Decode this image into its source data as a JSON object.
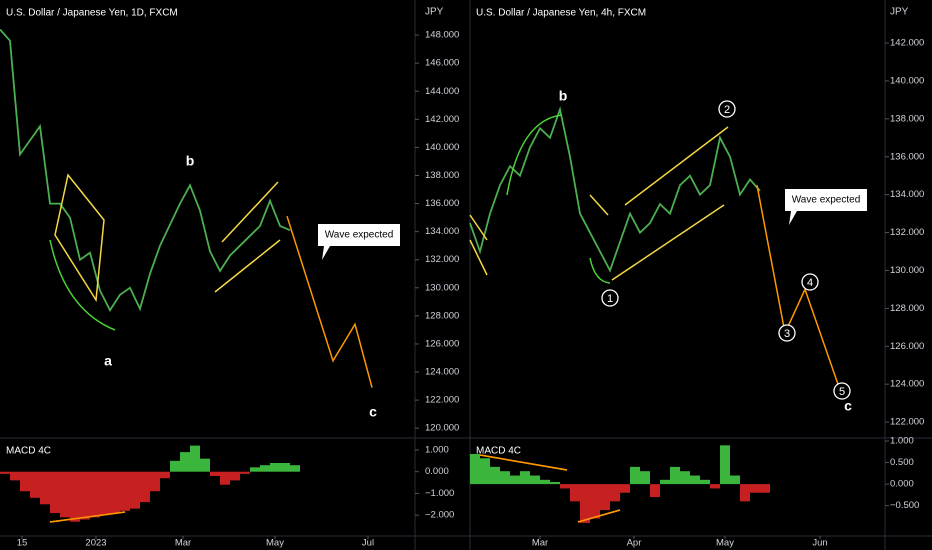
{
  "chart_data": [
    {
      "type": "line",
      "title": "U.S. Dollar / Japanese Yen, 1D, FXCM",
      "y_label": "JPY",
      "xlim": [
        0,
        41.5
      ],
      "ylim": [
        119.3,
        150.5
      ],
      "xticks": [
        {
          "value": 2.2,
          "label": "15"
        },
        {
          "value": 9.6,
          "label": "2023"
        },
        {
          "value": 18.3,
          "label": "Mar"
        },
        {
          "value": 27.5,
          "label": "May"
        },
        {
          "value": 36.8,
          "label": "Jul"
        }
      ],
      "yticks": [
        {
          "value": 120,
          "label": "120.000"
        },
        {
          "value": 122,
          "label": "122.000"
        },
        {
          "value": 124,
          "label": "124.000"
        },
        {
          "value": 126,
          "label": "126.000"
        },
        {
          "value": 128,
          "label": "128.000"
        },
        {
          "value": 130,
          "label": "130.000"
        },
        {
          "value": 132,
          "label": "132.000"
        },
        {
          "value": 134,
          "label": "134.000"
        },
        {
          "value": 136,
          "label": "136.000"
        },
        {
          "value": 138,
          "label": "138.000"
        },
        {
          "value": 140,
          "label": "140.000"
        },
        {
          "value": 142,
          "label": "142.000"
        },
        {
          "value": 144,
          "label": "144.000"
        },
        {
          "value": 146,
          "label": "146.000"
        },
        {
          "value": 148,
          "label": "148.000"
        }
      ],
      "series": [
        {
          "color": "#4caf50",
          "x": [
            0,
            1,
            2,
            3,
            4,
            5,
            6,
            7,
            8,
            9,
            10,
            11,
            12,
            13,
            14,
            15,
            16,
            17,
            18,
            19,
            20,
            21,
            22,
            23,
            24,
            25,
            26,
            27,
            28,
            29
          ],
          "values": [
            148.4,
            147.6,
            139.5,
            140.5,
            141.5,
            136,
            136,
            135,
            132,
            132.5,
            129.8,
            128.4,
            129.5,
            130,
            128.5,
            131,
            133,
            134.5,
            136,
            137.3,
            135.5,
            132.6,
            131.2,
            132.3,
            133,
            133.7,
            134.4,
            136.2,
            134.4,
            134.1
          ]
        },
        {
          "color": "#ff9800",
          "x": [
            28.7,
            33.3,
            35.5,
            37.2
          ],
          "values": [
            135.1,
            124.8,
            127.4,
            122.9
          ]
        }
      ],
      "annotations": [
        "a",
        "b",
        "c"
      ],
      "callout": "Wave expected"
    },
    {
      "type": "bar",
      "title": "MACD 4C",
      "ylim": [
        -3.05,
        1.55
      ],
      "yticks": [
        {
          "value": 1,
          "label": "1.000"
        },
        {
          "value": 0,
          "label": "0.000"
        },
        {
          "value": -1,
          "label": "−1.000"
        },
        {
          "value": -2,
          "label": "−2.000"
        }
      ],
      "color_positive": "#3bb53b",
      "color_negative": "#c62020",
      "values": [
        -0.1,
        -0.4,
        -0.9,
        -1.2,
        -1.5,
        -1.9,
        -2.1,
        -2.3,
        -2.2,
        -2.1,
        -2.0,
        -1.9,
        -1.8,
        -1.7,
        -1.4,
        -0.9,
        -0.3,
        0.5,
        0.9,
        1.2,
        0.6,
        -0.2,
        -0.6,
        -0.4,
        -0.1,
        0.2,
        0.3,
        0.4,
        0.4,
        0.3
      ]
    },
    {
      "type": "line",
      "title": "U.S. Dollar / Japanese Yen, 4h, FXCM",
      "y_label": "JPY",
      "xlim": [
        0,
        41.5
      ],
      "ylim": [
        121.16,
        144.27
      ],
      "xticks": [
        {
          "value": 7,
          "label": "Mar"
        },
        {
          "value": 16.4,
          "label": "Apr"
        },
        {
          "value": 25.5,
          "label": "May"
        },
        {
          "value": 35,
          "label": "Jun"
        }
      ],
      "yticks": [
        {
          "value": 122,
          "label": "122.000"
        },
        {
          "value": 124,
          "label": "124.000"
        },
        {
          "value": 126,
          "label": "126.000"
        },
        {
          "value": 128,
          "label": "128.000"
        },
        {
          "value": 130,
          "label": "130.000"
        },
        {
          "value": 132,
          "label": "132.000"
        },
        {
          "value": 134,
          "label": "134.000"
        },
        {
          "value": 136,
          "label": "136.000"
        },
        {
          "value": 138,
          "label": "138.000"
        },
        {
          "value": 140,
          "label": "140.000"
        },
        {
          "value": 142,
          "label": "142.000"
        }
      ],
      "series": [
        {
          "color": "#4caf50",
          "x": [
            0,
            1,
            2,
            3,
            4,
            5,
            6,
            7,
            8,
            9,
            10,
            11,
            12,
            13,
            14,
            15,
            16,
            17,
            18,
            19,
            20,
            21,
            22,
            23,
            24,
            25,
            26,
            27,
            28,
            29
          ],
          "values": [
            132.5,
            131,
            133,
            134.5,
            135.5,
            135,
            136.5,
            137.5,
            137,
            138.5,
            136,
            133,
            132,
            131,
            130,
            131.5,
            133,
            132,
            132.5,
            133.5,
            133,
            134.5,
            135,
            134,
            134.5,
            137,
            136,
            134,
            134.8,
            134.2
          ]
        },
        {
          "color": "#ff9800",
          "x": [
            28.7,
            31.5,
            33.5,
            36.8
          ],
          "values": [
            134.5,
            126.7,
            129,
            124
          ]
        }
      ],
      "annotations": [
        "b",
        "c"
      ],
      "wave_labels": [
        "1",
        "2",
        "3",
        "4",
        "5"
      ],
      "callout": "Wave expected"
    },
    {
      "type": "bar",
      "title": "MACD 4C",
      "ylim": [
        -1.25,
        1.07
      ],
      "yticks": [
        {
          "value": 1,
          "label": "1.000"
        },
        {
          "value": 0.5,
          "label": "0.500"
        },
        {
          "value": 0,
          "label": "0.000"
        },
        {
          "value": -0.5,
          "label": "−0.500"
        }
      ],
      "color_positive": "#3bb53b",
      "color_negative": "#c62020",
      "values": [
        0.7,
        0.6,
        0.4,
        0.3,
        0.2,
        0.3,
        0.2,
        0.1,
        0.05,
        -0.1,
        -0.4,
        -0.9,
        -0.8,
        -0.6,
        -0.4,
        -0.2,
        0.4,
        0.3,
        -0.3,
        0.1,
        0.4,
        0.3,
        0.2,
        0.1,
        -0.1,
        0.9,
        0.2,
        -0.4,
        -0.2,
        -0.2
      ]
    }
  ]
}
